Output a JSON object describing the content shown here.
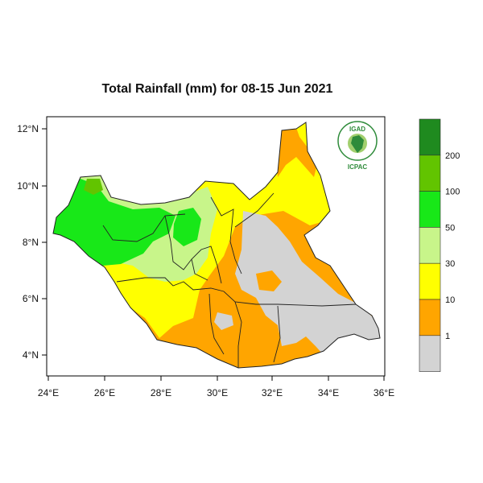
{
  "title": "Total Rainfall (mm) for 08-15 Jun 2021",
  "logo": {
    "top_text": "IGAD",
    "bottom_text": "ICPAC",
    "color": "#2e8b3a"
  },
  "axes": {
    "x_ticks": [
      "24°E",
      "26°E",
      "28°E",
      "30°E",
      "32°E",
      "34°E",
      "36°E"
    ],
    "y_ticks": [
      "12°N",
      "10°N",
      "8°N",
      "6°N",
      "4°N"
    ]
  },
  "colorbar": {
    "labels": [
      "200",
      "100",
      "50",
      "30",
      "10",
      "1"
    ],
    "colors": [
      "#1f8a1f",
      "#62c400",
      "#18e818",
      "#c8f58a",
      "#ffff00",
      "#ffa500",
      "#d3d3d3"
    ]
  },
  "legend_classes": [
    {
      "range": "<1",
      "color": "#d3d3d3"
    },
    {
      "range": "1-10",
      "color": "#ffa500"
    },
    {
      "range": "10-30",
      "color": "#ffff00"
    },
    {
      "range": "30-50",
      "color": "#c8f58a"
    },
    {
      "range": "50-100",
      "color": "#18e818"
    },
    {
      "range": "100-200",
      "color": "#62c400"
    },
    {
      "range": ">200",
      "color": "#1f8a1f"
    }
  ]
}
